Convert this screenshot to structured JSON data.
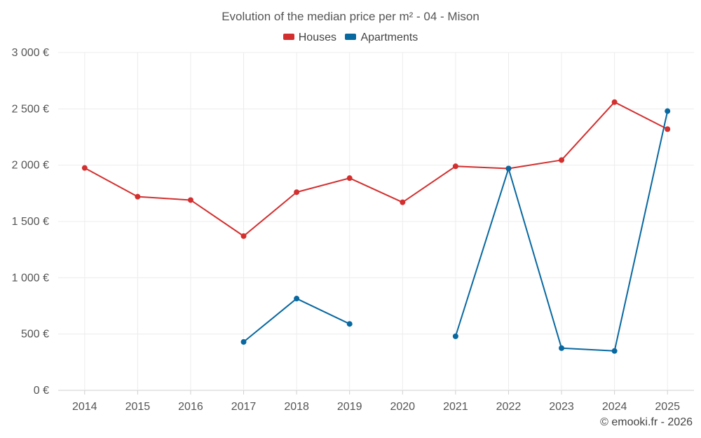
{
  "chart_data": {
    "type": "line",
    "title": "Evolution of the median price per m² - 04 - Mison",
    "categories": [
      "2014",
      "2015",
      "2016",
      "2017",
      "2018",
      "2019",
      "2020",
      "2021",
      "2022",
      "2023",
      "2024",
      "2025"
    ],
    "series": [
      {
        "name": "Houses",
        "color": "#d32f2f",
        "values": [
          1975,
          1720,
          1690,
          1370,
          1760,
          1885,
          1670,
          1990,
          1970,
          2045,
          2560,
          2320
        ]
      },
      {
        "name": "Apartments",
        "color": "#0868a0",
        "values": [
          null,
          null,
          null,
          430,
          815,
          590,
          null,
          480,
          1970,
          375,
          350,
          2480
        ]
      }
    ],
    "ylim": [
      0,
      3000
    ],
    "yticks": [
      0,
      500,
      1000,
      1500,
      2000,
      2500,
      3000
    ],
    "ytick_labels": [
      "0 €",
      "500 €",
      "1 000 €",
      "1 500 €",
      "2 000 €",
      "2 500 €",
      "3 000 €"
    ],
    "xlabel": "",
    "ylabel": "",
    "legend_position": "top-center",
    "grid": true
  },
  "credit": "© emooki.fr - 2026"
}
